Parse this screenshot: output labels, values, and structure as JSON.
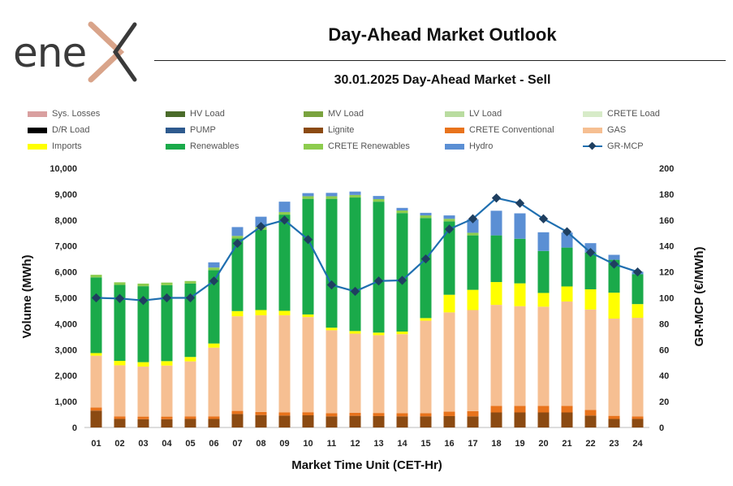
{
  "brand": {
    "logo_text": "ene",
    "logo_icon": "x-chevron-logo"
  },
  "header": {
    "title": "Day-Ahead Market Outlook",
    "subtitle": "30.01.2025  Day-Ahead Market - Sell"
  },
  "chart_data": {
    "type": "bar",
    "stacked": true,
    "title": "30.01.2025  Day-Ahead Market - Sell",
    "xlabel": "Market Time Unit (CET-Hr)",
    "ylabel": "Volume (MWh)",
    "y2label": "GR-MCP (€/MWh)",
    "ylim": [
      0,
      10000
    ],
    "y2lim": [
      0,
      200
    ],
    "yticks": [
      "0",
      "1,000",
      "2,000",
      "3,000",
      "4,000",
      "5,000",
      "6,000",
      "7,000",
      "8,000",
      "9,000",
      "10,000"
    ],
    "y2ticks": [
      "0",
      "20",
      "40",
      "60",
      "80",
      "100",
      "120",
      "140",
      "160",
      "180",
      "200"
    ],
    "categories": [
      "01",
      "02",
      "03",
      "04",
      "05",
      "06",
      "07",
      "08",
      "09",
      "10",
      "11",
      "12",
      "13",
      "14",
      "15",
      "16",
      "17",
      "18",
      "19",
      "20",
      "21",
      "22",
      "23",
      "24"
    ],
    "legend": [
      {
        "name": "Sys. Losses",
        "color": "#d9a0a0"
      },
      {
        "name": "HV Load",
        "color": "#4a6b2a"
      },
      {
        "name": "MV Load",
        "color": "#7aa33e"
      },
      {
        "name": "LV Load",
        "color": "#b9dca0"
      },
      {
        "name": "CRETE Load",
        "color": "#d7ebc8"
      },
      {
        "name": "D/R Load",
        "color": "#000000"
      },
      {
        "name": "PUMP",
        "color": "#2e5a8e"
      },
      {
        "name": "Lignite",
        "color": "#8b4a12"
      },
      {
        "name": "CRETE Conventional",
        "color": "#e8731c"
      },
      {
        "name": "GAS",
        "color": "#f6bf92"
      },
      {
        "name": "Imports",
        "color": "#ffff00"
      },
      {
        "name": "Renewables",
        "color": "#1aaa4a"
      },
      {
        "name": "CRETE Renewables",
        "color": "#8dcc4e"
      },
      {
        "name": "Hydro",
        "color": "#5b8fd4"
      },
      {
        "name": "GR-MCP",
        "color": "#1f6fb0"
      }
    ],
    "series": [
      {
        "name": "Lignite",
        "color": "#8b4a12",
        "values": [
          650,
          330,
          320,
          320,
          330,
          330,
          520,
          480,
          460,
          470,
          430,
          450,
          440,
          430,
          430,
          440,
          430,
          580,
          580,
          580,
          580,
          460,
          330,
          330
        ]
      },
      {
        "name": "CRETE Conventional",
        "color": "#e8731c",
        "values": [
          120,
          100,
          100,
          100,
          100,
          100,
          120,
          120,
          120,
          120,
          120,
          120,
          120,
          120,
          120,
          170,
          200,
          250,
          250,
          250,
          250,
          220,
          120,
          100
        ]
      },
      {
        "name": "GAS",
        "color": "#f6bf92",
        "values": [
          2000,
          1970,
          1930,
          1970,
          2120,
          2650,
          3650,
          3730,
          3750,
          3670,
          3200,
          3050,
          3000,
          3050,
          3570,
          3830,
          3900,
          3900,
          3850,
          3830,
          4030,
          3870,
          3750,
          3800
        ]
      },
      {
        "name": "Imports",
        "color": "#ffff00",
        "values": [
          100,
          170,
          170,
          170,
          170,
          160,
          200,
          200,
          170,
          100,
          100,
          100,
          100,
          100,
          100,
          680,
          780,
          880,
          880,
          530,
          580,
          780,
          1000,
          530
        ]
      },
      {
        "name": "Renewables",
        "color": "#1aaa4a",
        "values": [
          2920,
          2930,
          2930,
          2930,
          2830,
          2830,
          2800,
          3100,
          3710,
          4460,
          4970,
          5150,
          5050,
          4570,
          3860,
          2830,
          2100,
          1800,
          1720,
          1620,
          1500,
          1420,
          1270,
          1150
        ]
      },
      {
        "name": "CRETE Renewables",
        "color": "#8dcc4e",
        "values": [
          100,
          100,
          100,
          100,
          100,
          100,
          100,
          100,
          100,
          100,
          100,
          100,
          100,
          100,
          100,
          100,
          100,
          0,
          0,
          0,
          0,
          0,
          0,
          0
        ]
      },
      {
        "name": "Hydro",
        "color": "#5b8fd4",
        "values": [
          0,
          0,
          0,
          0,
          0,
          200,
          340,
          400,
          400,
          120,
          130,
          130,
          120,
          100,
          100,
          130,
          520,
          950,
          980,
          720,
          580,
          360,
          190,
          100
        ]
      }
    ],
    "line": {
      "name": "GR-MCP",
      "color": "#1f6fb0",
      "values": [
        100,
        99.5,
        98,
        100,
        100,
        113,
        142,
        155,
        160,
        145,
        110,
        105,
        113,
        113.5,
        130,
        153,
        161,
        177,
        173,
        161,
        151,
        135,
        126,
        120
      ]
    }
  }
}
